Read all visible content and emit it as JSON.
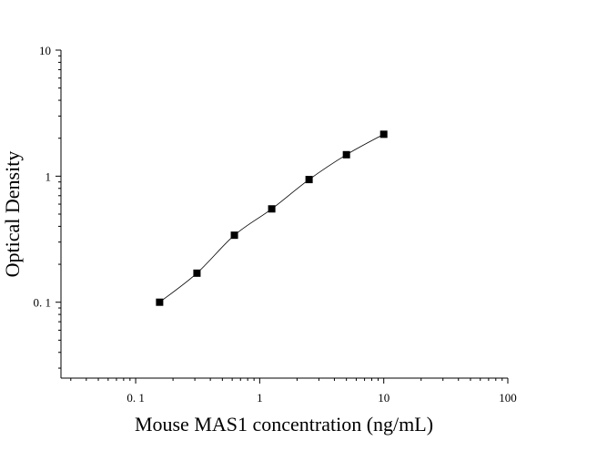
{
  "chart_data": {
    "type": "scatter",
    "xlabel": "Mouse MAS1 concentration (ng/mL)",
    "ylabel": "Optical Density",
    "xscale": "log",
    "yscale": "log",
    "xlim": [
      0.025,
      100
    ],
    "ylim": [
      0.025,
      10
    ],
    "x_ticks": [
      {
        "value": 0.1,
        "label": "0. 1"
      },
      {
        "value": 1,
        "label": "1"
      },
      {
        "value": 10,
        "label": "10"
      },
      {
        "value": 100,
        "label": "100"
      }
    ],
    "y_ticks": [
      {
        "value": 0.1,
        "label": "0. 1"
      },
      {
        "value": 1,
        "label": "1"
      },
      {
        "value": 10,
        "label": "10"
      }
    ],
    "grid": false,
    "marker": "square",
    "marker_color": "#000000",
    "curve_color": "#000000",
    "fitted_curve": true,
    "series": [
      {
        "x": [
          0.156,
          0.312,
          0.625,
          1.25,
          2.5,
          5,
          10
        ],
        "y": [
          0.1,
          0.17,
          0.34,
          0.55,
          0.94,
          1.48,
          2.15
        ]
      }
    ]
  }
}
